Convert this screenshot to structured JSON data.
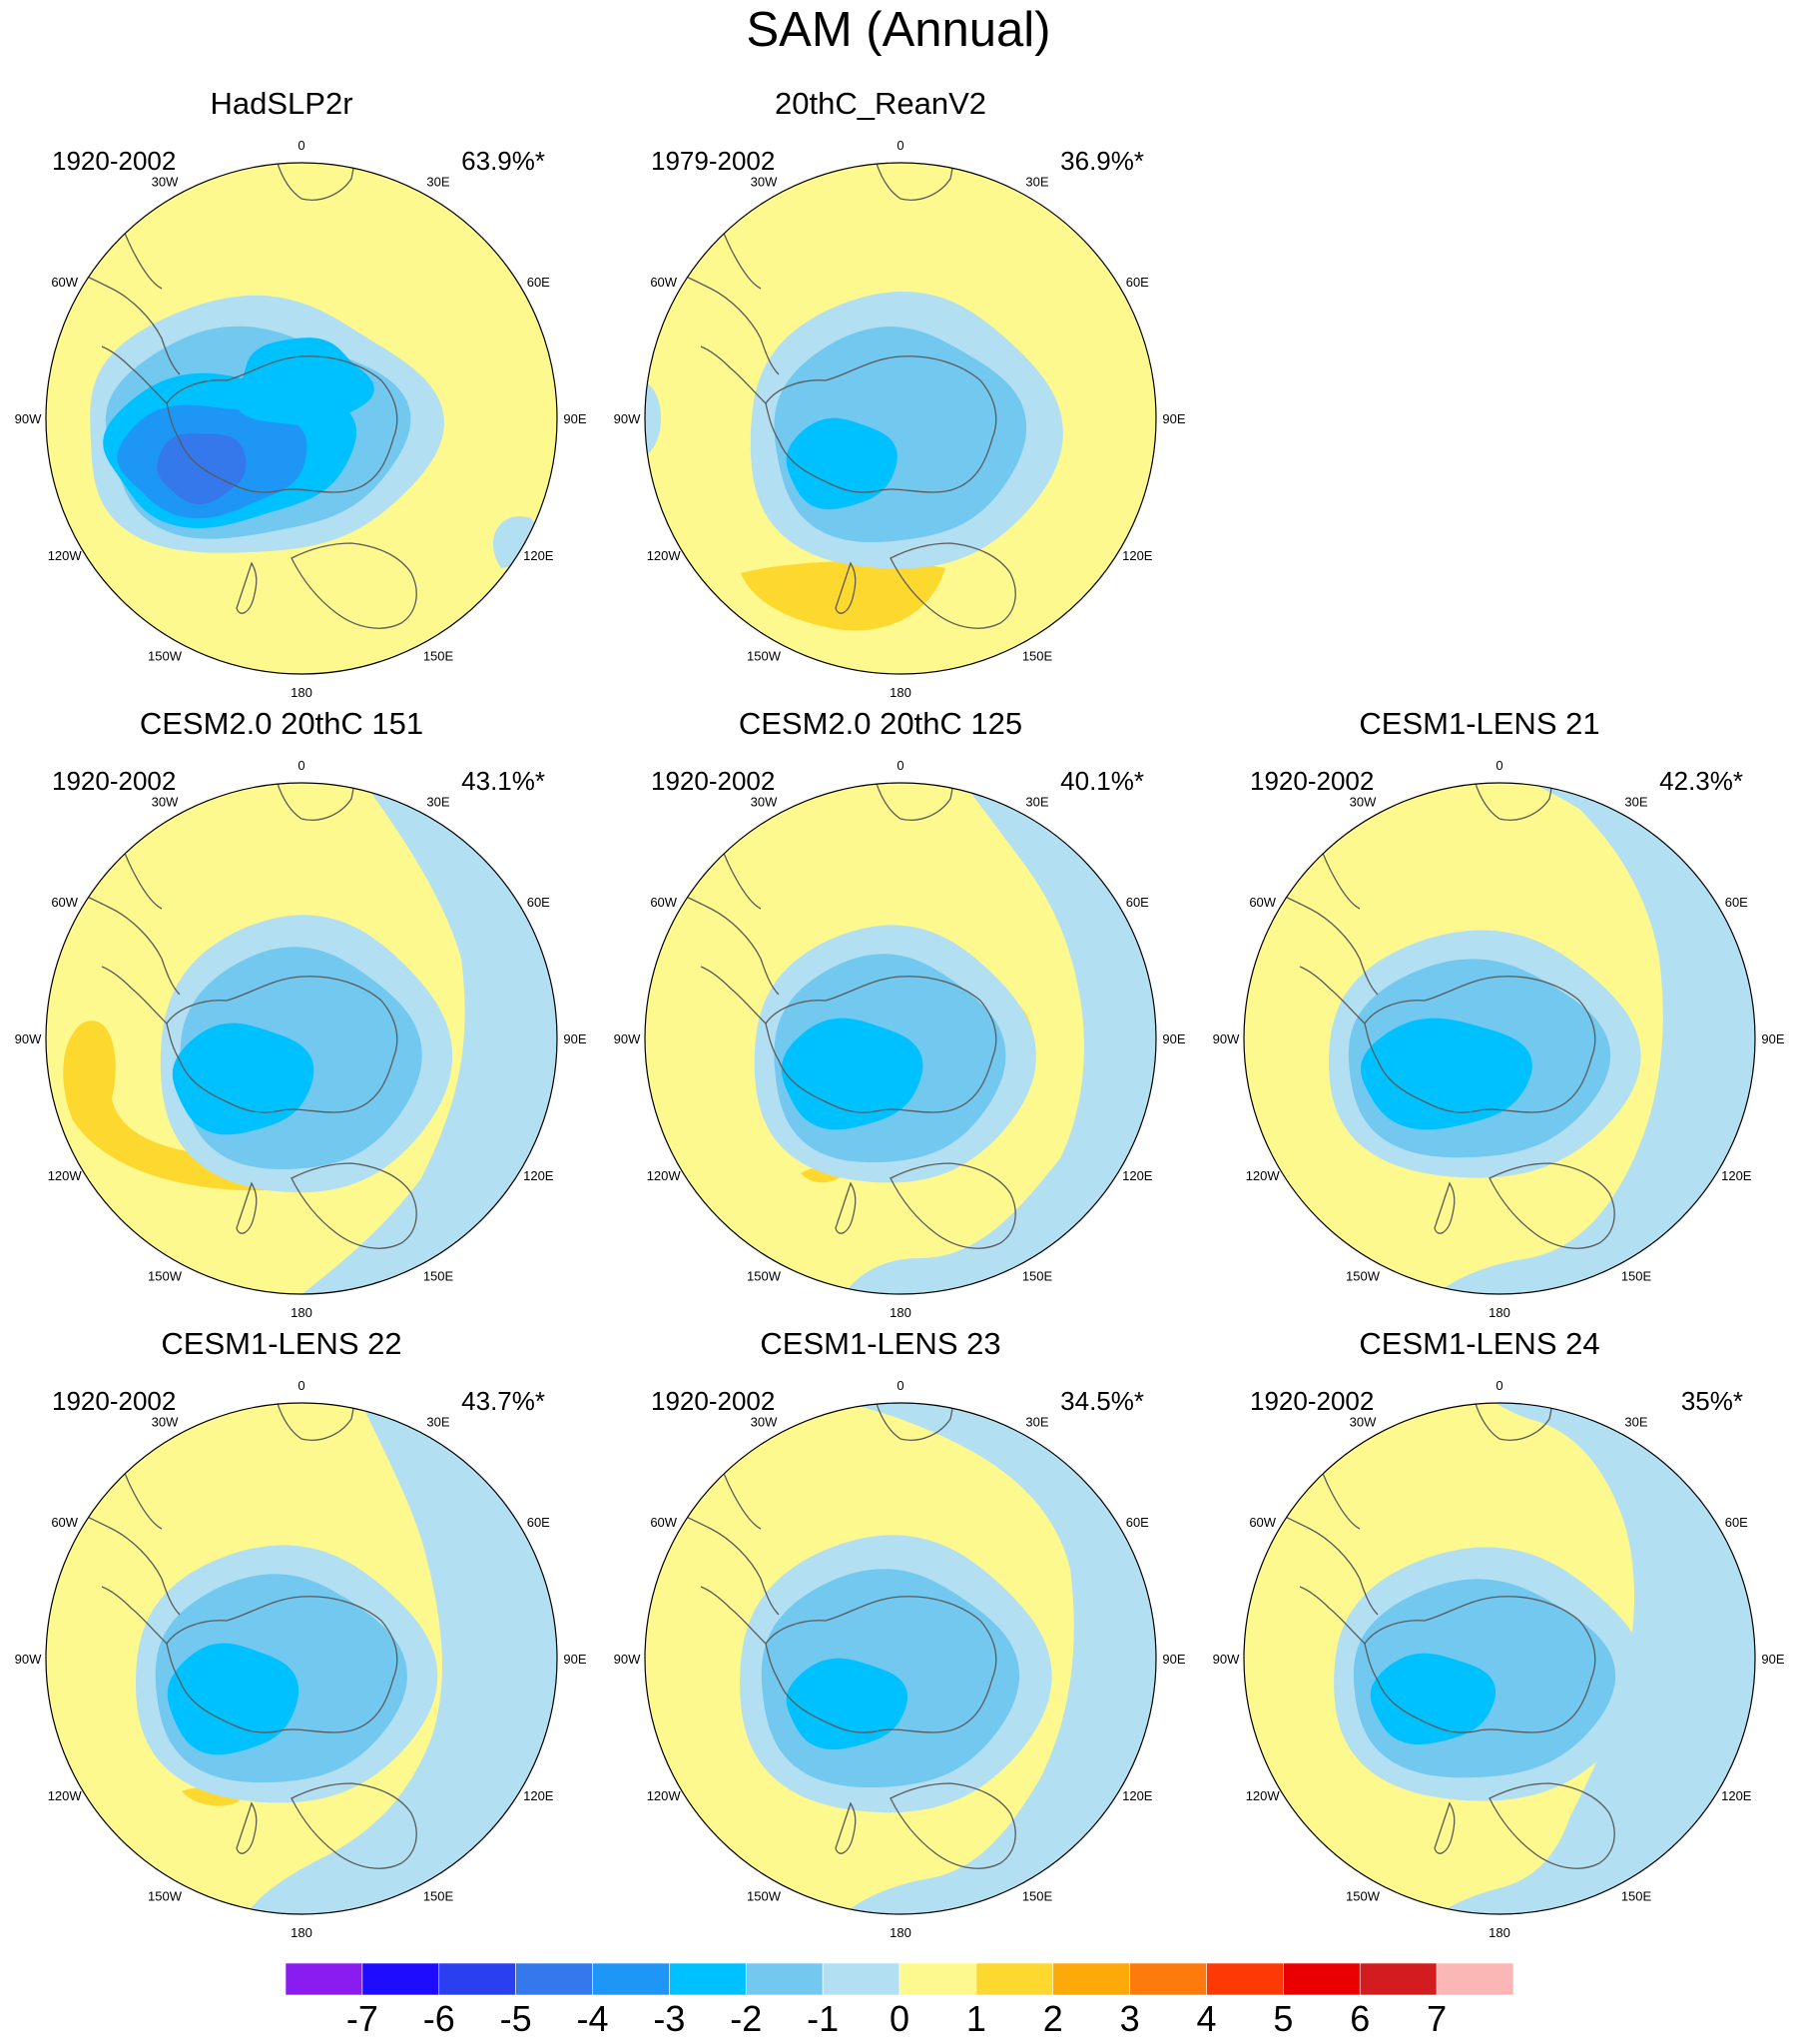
{
  "title": "SAM (Annual)",
  "panels": [
    {
      "name": "HadSLP2r",
      "period": "1920-2002",
      "variance": "63.9%*",
      "pattern": "hadslp"
    },
    {
      "name": "20thC_ReanV2",
      "period": "1979-2002",
      "variance": "36.9%*",
      "pattern": "rean"
    },
    {
      "name": "CESM2.0 20thC 151",
      "period": "1920-2002",
      "variance": "43.1%*",
      "pattern": "c151"
    },
    {
      "name": "CESM2.0 20thC 125",
      "period": "1920-2002",
      "variance": "40.1%*",
      "pattern": "c125"
    },
    {
      "name": "CESM1-LENS 21",
      "period": "1920-2002",
      "variance": "42.3%*",
      "pattern": "l21"
    },
    {
      "name": "CESM1-LENS 22",
      "period": "1920-2002",
      "variance": "43.7%*",
      "pattern": "l22"
    },
    {
      "name": "CESM1-LENS 23",
      "period": "1920-2002",
      "variance": "34.5%*",
      "pattern": "l23"
    },
    {
      "name": "CESM1-LENS 24",
      "period": "1920-2002",
      "variance": "35%*",
      "pattern": "l24"
    }
  ],
  "longitude_labels": [
    "0",
    "30E",
    "60E",
    "90E",
    "120E",
    "150E",
    "180",
    "150W",
    "120W",
    "90W",
    "60W",
    "30W"
  ],
  "colorbar": {
    "labels": [
      "-7",
      "-6",
      "-5",
      "-4",
      "-3",
      "-2",
      "-1",
      "0",
      "1",
      "2",
      "3",
      "4",
      "5",
      "6",
      "7"
    ],
    "colors": [
      "#8a1cf0",
      "#1e0cff",
      "#2a3ff0",
      "#3578ec",
      "#1e96f5",
      "#00c1ff",
      "#73c8f0",
      "#b3dff2",
      "#fdf98e",
      "#fdd82f",
      "#fda90a",
      "#fd7a0d",
      "#fd3a05",
      "#eb0000",
      "#d21c20",
      "#fbb6b6"
    ]
  },
  "map_colors": {
    "ocean_yellow": "#fdf98e",
    "light_blue": "#b3dff2",
    "blue2": "#73c8f0",
    "blue3": "#00c1ff",
    "blue4": "#3578ec",
    "orange1": "#fdd82f",
    "coast": "#5a5a5a"
  }
}
